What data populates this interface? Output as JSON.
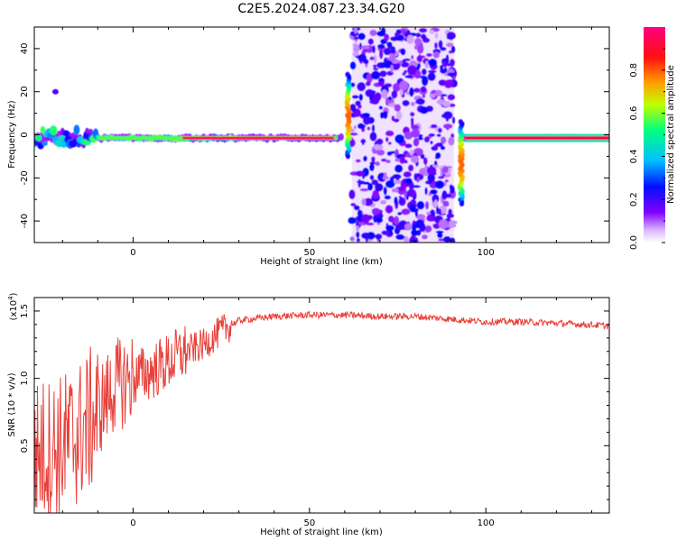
{
  "figure": {
    "title": "C2E5.2024.087.23.34.G20"
  },
  "chart_data": [
    {
      "type": "heatmap",
      "xlabel": "Height of straight line (km)",
      "ylabel": "Frequency (Hz)",
      "xlim": [
        -28,
        135
      ],
      "ylim": [
        -50,
        50
      ],
      "xticks": [
        0,
        50,
        100
      ],
      "yticks": [
        -40,
        -20,
        0,
        20,
        40
      ],
      "colorbar": {
        "label": "Normalized spectral amplitude",
        "ticks": [
          0.0,
          0.2,
          0.4,
          0.6,
          0.8
        ],
        "range": [
          0,
          1
        ],
        "colormap": [
          "#ffffff",
          "#8000ff",
          "#0000ff",
          "#00c0ff",
          "#00ff80",
          "#c0ff00",
          "#ffa000",
          "#ff0000",
          "#ff0080"
        ]
      },
      "features": {
        "carrier_line": {
          "frequency_hz": -1.5,
          "x_range": [
            -28,
            135
          ],
          "peak_amplitude": 0.95
        },
        "noise_band": {
          "x_range": [
            62,
            91
          ],
          "amplitude_range": [
            0.05,
            0.3
          ]
        },
        "spurs": [
          {
            "x": 61,
            "y_range": [
              -10,
              28
            ]
          },
          {
            "x": 93,
            "y_range": [
              -32,
              6
            ]
          },
          {
            "x": -22,
            "y": 20
          }
        ]
      }
    },
    {
      "type": "line",
      "xlabel": "Height of straight line (km)",
      "ylabel": "SNR (10 * v/v)",
      "y_multiplier": "(x10",
      "y_multiplier_exp": "4",
      "y_multiplier_close": ")",
      "xlim": [
        -28,
        135
      ],
      "ylim": [
        0,
        1.6
      ],
      "xticks": [
        0,
        50,
        100
      ],
      "yticks": [
        0.5,
        1.0,
        1.5
      ],
      "color": "#e8403a",
      "series": [
        {
          "x": [
            -28,
            -20,
            -15,
            -10,
            -5,
            0,
            5,
            10,
            15,
            20,
            25,
            30,
            40,
            50,
            60,
            70,
            80,
            90,
            100,
            110,
            120,
            135
          ],
          "values": [
            0.45,
            0.5,
            0.6,
            0.75,
            0.95,
            1.0,
            1.05,
            1.12,
            1.2,
            1.25,
            1.35,
            1.43,
            1.46,
            1.47,
            1.47,
            1.46,
            1.46,
            1.44,
            1.42,
            1.42,
            1.41,
            1.39
          ]
        }
      ]
    }
  ]
}
